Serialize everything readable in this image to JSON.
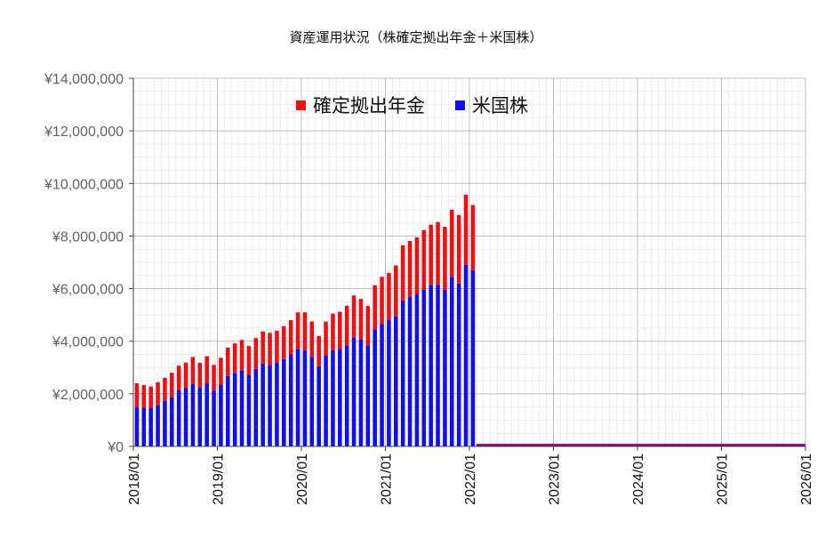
{
  "chart_data": {
    "type": "bar",
    "stacked": true,
    "title": "資産運用状況（株確定拠出年金＋米国株）",
    "xlabel": "",
    "ylabel": "",
    "ylim": [
      0,
      14000000
    ],
    "y_ticks": [
      0,
      2000000,
      4000000,
      6000000,
      8000000,
      10000000,
      12000000,
      14000000
    ],
    "y_tick_labels": [
      "¥0",
      "¥2,000,000",
      "¥4,000,000",
      "¥6,000,000",
      "¥8,000,000",
      "¥10,000,000",
      "¥12,000,000",
      "¥14,000,000"
    ],
    "x_range": [
      "2018/01",
      "2026/01"
    ],
    "x_tick_labels": [
      "2018/01",
      "2019/01",
      "2020/01",
      "2021/01",
      "2022/01",
      "2023/01",
      "2024/01",
      "2025/01",
      "2026/01"
    ],
    "grid": true,
    "legend_position": "top-center",
    "categories": [
      "2018/01",
      "2018/02",
      "2018/03",
      "2018/04",
      "2018/05",
      "2018/06",
      "2018/07",
      "2018/08",
      "2018/09",
      "2018/10",
      "2018/11",
      "2018/12",
      "2019/01",
      "2019/02",
      "2019/03",
      "2019/04",
      "2019/05",
      "2019/06",
      "2019/07",
      "2019/08",
      "2019/09",
      "2019/10",
      "2019/11",
      "2019/12",
      "2020/01",
      "2020/02",
      "2020/03",
      "2020/04",
      "2020/05",
      "2020/06",
      "2020/07",
      "2020/08",
      "2020/09",
      "2020/10",
      "2020/11",
      "2020/12",
      "2021/01",
      "2021/02",
      "2021/03",
      "2021/04",
      "2021/05",
      "2021/06",
      "2021/07",
      "2021/08",
      "2021/09",
      "2021/10",
      "2021/11",
      "2021/12",
      "2022/01"
    ],
    "series": [
      {
        "name": "米国株",
        "color": "#1010ee",
        "values": [
          1500000,
          1470000,
          1480000,
          1570000,
          1750000,
          1880000,
          2150000,
          2230000,
          2380000,
          2230000,
          2400000,
          2120000,
          2350000,
          2680000,
          2800000,
          2900000,
          2720000,
          2950000,
          3150000,
          3100000,
          3200000,
          3320000,
          3500000,
          3700000,
          3650000,
          3400000,
          3050000,
          3450000,
          3650000,
          3700000,
          3850000,
          4150000,
          4080000,
          3850000,
          4450000,
          4650000,
          4800000,
          4950000,
          5550000,
          5680000,
          5800000,
          5950000,
          6150000,
          6150000,
          5950000,
          6450000,
          6200000,
          6900000,
          6700000
        ]
      },
      {
        "name": "確定拠出年金",
        "color": "#ee1010",
        "values": [
          900000,
          860000,
          800000,
          870000,
          860000,
          920000,
          920000,
          960000,
          1020000,
          950000,
          1030000,
          980000,
          1020000,
          1080000,
          1120000,
          1150000,
          1100000,
          1170000,
          1220000,
          1220000,
          1200000,
          1250000,
          1300000,
          1400000,
          1450000,
          1350000,
          1150000,
          1300000,
          1400000,
          1420000,
          1500000,
          1590000,
          1530000,
          1490000,
          1680000,
          1800000,
          1800000,
          1930000,
          2100000,
          2130000,
          2150000,
          2280000,
          2280000,
          2380000,
          2400000,
          2550000,
          2600000,
          2670000,
          2480000
        ]
      }
    ]
  }
}
